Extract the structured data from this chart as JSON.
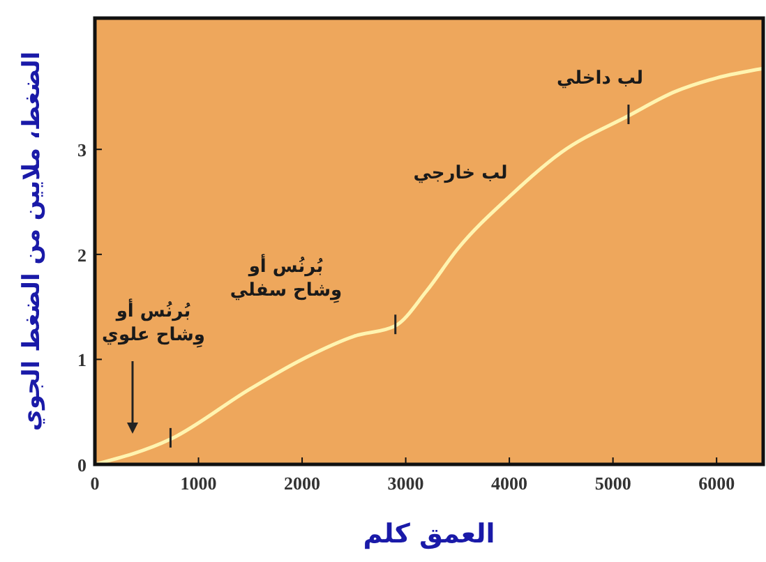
{
  "chart_data": {
    "type": "line",
    "xlabel": "العمق كلم",
    "ylabel": "الضغط، ملايين من الضغط الجوي",
    "x": [
      0,
      730,
      1500,
      2000,
      2500,
      2900,
      3200,
      3500,
      4000,
      4500,
      5150,
      5600,
      6000,
      6450
    ],
    "series": [
      {
        "color": "#fff4b0",
        "values": [
          0,
          0.24,
          0.72,
          1.0,
          1.22,
          1.32,
          1.65,
          2.05,
          2.55,
          2.97,
          3.32,
          3.55,
          3.68,
          3.77
        ]
      }
    ],
    "xlim": [
      0,
      6450
    ],
    "ylim": [
      0,
      4.25
    ],
    "xticks": [
      0,
      1000,
      2000,
      3000,
      4000,
      5000,
      6000
    ],
    "yticks": [
      0,
      1,
      2,
      3
    ],
    "grid": false,
    "marker": "none",
    "line_style": "solid",
    "annotations": [
      "بُرنُس أو\nوِشاح علوي",
      "بُرنُس أو\nوِشاح سفلي",
      "لب خارجي",
      "لب داخلي"
    ]
  }
}
